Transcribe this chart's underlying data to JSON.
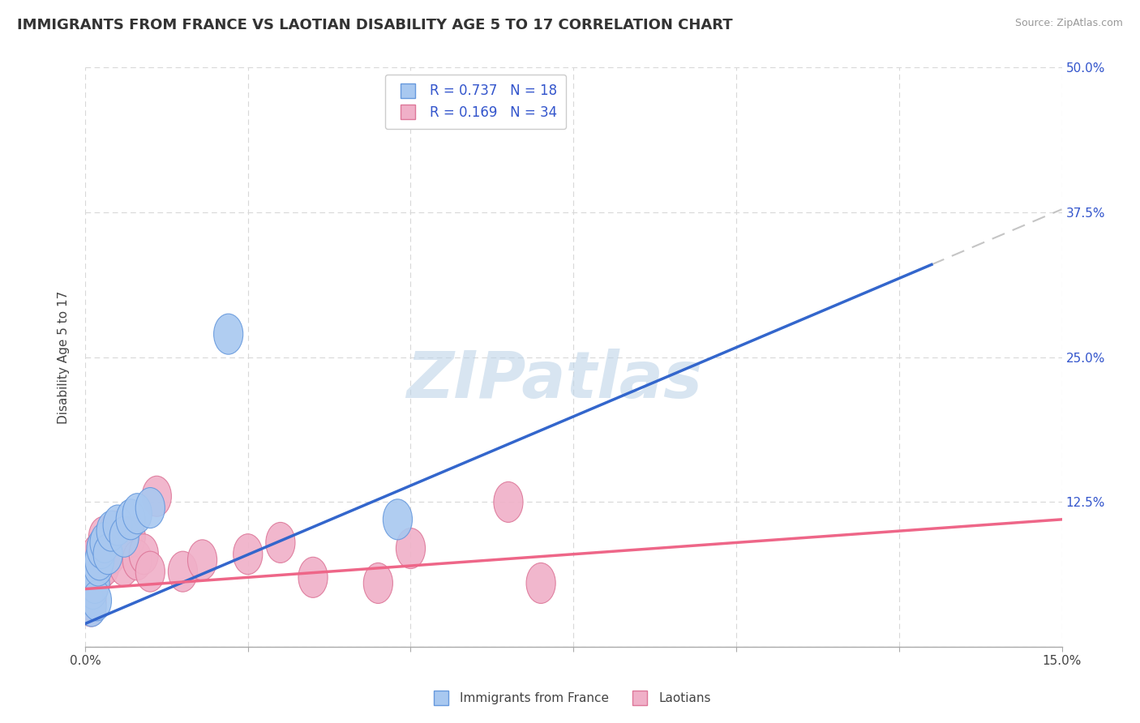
{
  "title": "IMMIGRANTS FROM FRANCE VS LAOTIAN DISABILITY AGE 5 TO 17 CORRELATION CHART",
  "source": "Source: ZipAtlas.com",
  "ylabel": "Disability Age 5 to 17",
  "xlim": [
    0.0,
    15.0
  ],
  "ylim": [
    0.0,
    50.0
  ],
  "xticks": [
    0.0,
    2.5,
    5.0,
    7.5,
    10.0,
    12.5,
    15.0
  ],
  "yticks": [
    0.0,
    12.5,
    25.0,
    37.5,
    50.0
  ],
  "xtick_labels": [
    "0.0%",
    "",
    "",
    "",
    "",
    "",
    "15.0%"
  ],
  "ytick_labels": [
    "",
    "12.5%",
    "25.0%",
    "37.5%",
    "50.0%"
  ],
  "background_color": "#ffffff",
  "grid_color": "#d8d8d8",
  "watermark": "ZIPatlas",
  "watermark_color": "#bed4e8",
  "france_color": "#a8c8f0",
  "laotian_color": "#f0b0c8",
  "france_edge_color": "#6699dd",
  "laotian_edge_color": "#dd7799",
  "france_line_color": "#3366cc",
  "laotian_line_color": "#ee6688",
  "dash_color": "#bbbbbb",
  "france_R": 0.737,
  "france_N": 18,
  "laotian_R": 0.169,
  "laotian_N": 34,
  "legend_text_color": "#3355cc",
  "france_scatter_x": [
    0.05,
    0.1,
    0.12,
    0.15,
    0.18,
    0.2,
    0.22,
    0.25,
    0.3,
    0.35,
    0.4,
    0.5,
    0.6,
    0.7,
    0.8,
    1.0,
    2.2,
    4.8
  ],
  "france_scatter_y": [
    4.5,
    3.5,
    5.0,
    5.5,
    4.0,
    7.0,
    7.5,
    8.5,
    9.0,
    8.0,
    10.0,
    10.5,
    9.5,
    11.0,
    11.5,
    12.0,
    27.0,
    11.0
  ],
  "laotian_scatter_x": [
    0.03,
    0.05,
    0.06,
    0.08,
    0.09,
    0.1,
    0.12,
    0.14,
    0.15,
    0.18,
    0.2,
    0.22,
    0.25,
    0.28,
    0.3,
    0.35,
    0.4,
    0.45,
    0.5,
    0.6,
    0.7,
    0.8,
    0.9,
    1.0,
    1.1,
    1.5,
    1.8,
    2.5,
    3.0,
    3.5,
    4.5,
    5.0,
    6.5,
    7.0
  ],
  "laotian_scatter_y": [
    5.0,
    6.5,
    4.0,
    5.5,
    3.5,
    4.0,
    6.0,
    7.5,
    5.5,
    8.0,
    7.0,
    6.5,
    8.5,
    9.5,
    7.0,
    9.0,
    8.0,
    10.0,
    8.5,
    7.0,
    9.5,
    7.5,
    8.0,
    6.5,
    13.0,
    6.5,
    7.5,
    8.0,
    9.0,
    6.0,
    5.5,
    8.5,
    12.5,
    5.5
  ],
  "france_trend_x0": 0.0,
  "france_trend_y0": 2.0,
  "france_trend_x1": 13.0,
  "france_trend_y1": 33.0,
  "laotian_trend_x0": 0.0,
  "laotian_trend_y0": 5.0,
  "laotian_trend_x1": 15.0,
  "laotian_trend_y1": 11.0
}
